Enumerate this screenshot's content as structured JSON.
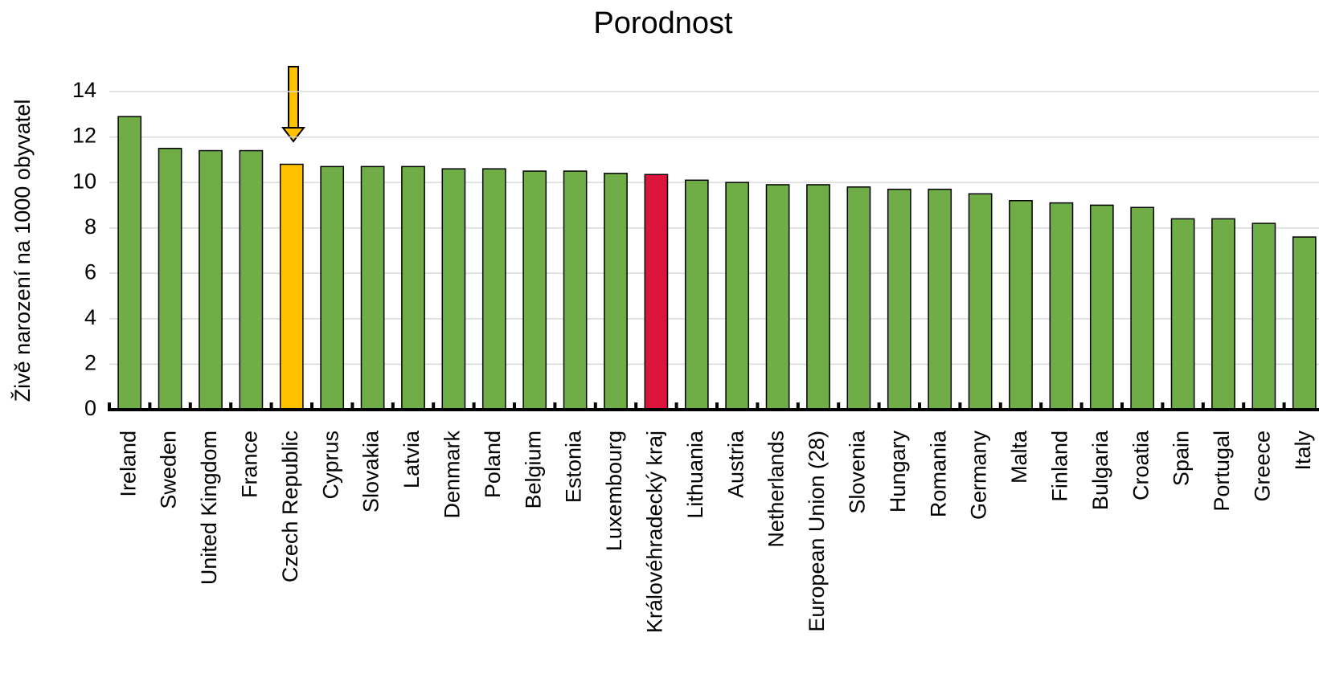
{
  "chart_data": {
    "type": "bar",
    "title": "Porodnost",
    "y_label": "Živě narození na 1000 obyvatel",
    "categories": [
      "Ireland",
      "Sweden",
      "United Kingdom",
      "France",
      "Czech Republic",
      "Cyprus",
      "Slovakia",
      "Latvia",
      "Denmark",
      "Poland",
      "Belgium",
      "Estonia",
      "Luxembourg",
      "Královéhradecký kraj",
      "Lithuania",
      "Austria",
      "Netherlands",
      "European Union (28)",
      "Slovenia",
      "Hungary",
      "Romania",
      "Germany",
      "Malta",
      "Finland",
      "Bulgaria",
      "Croatia",
      "Spain",
      "Portugal",
      "Greece",
      "Italy"
    ],
    "values": [
      12.9,
      11.5,
      11.4,
      11.4,
      10.8,
      10.7,
      10.7,
      10.7,
      10.6,
      10.6,
      10.5,
      10.5,
      10.4,
      10.35,
      10.1,
      10.0,
      9.9,
      9.9,
      9.8,
      9.7,
      9.7,
      9.5,
      9.2,
      9.1,
      9.0,
      8.9,
      8.4,
      8.4,
      8.2,
      7.6
    ],
    "colors": [
      "#70ad47",
      "#70ad47",
      "#70ad47",
      "#70ad47",
      "#ffc000",
      "#70ad47",
      "#70ad47",
      "#70ad47",
      "#70ad47",
      "#70ad47",
      "#70ad47",
      "#70ad47",
      "#70ad47",
      "#dc143c",
      "#70ad47",
      "#70ad47",
      "#70ad47",
      "#70ad47",
      "#70ad47",
      "#70ad47",
      "#70ad47",
      "#70ad47",
      "#70ad47",
      "#70ad47",
      "#70ad47",
      "#70ad47",
      "#70ad47",
      "#70ad47",
      "#70ad47",
      "#70ad47"
    ],
    "ylim": [
      0,
      14
    ],
    "yticks": [
      0,
      2,
      4,
      6,
      8,
      10,
      12,
      14
    ],
    "grid": true
  }
}
